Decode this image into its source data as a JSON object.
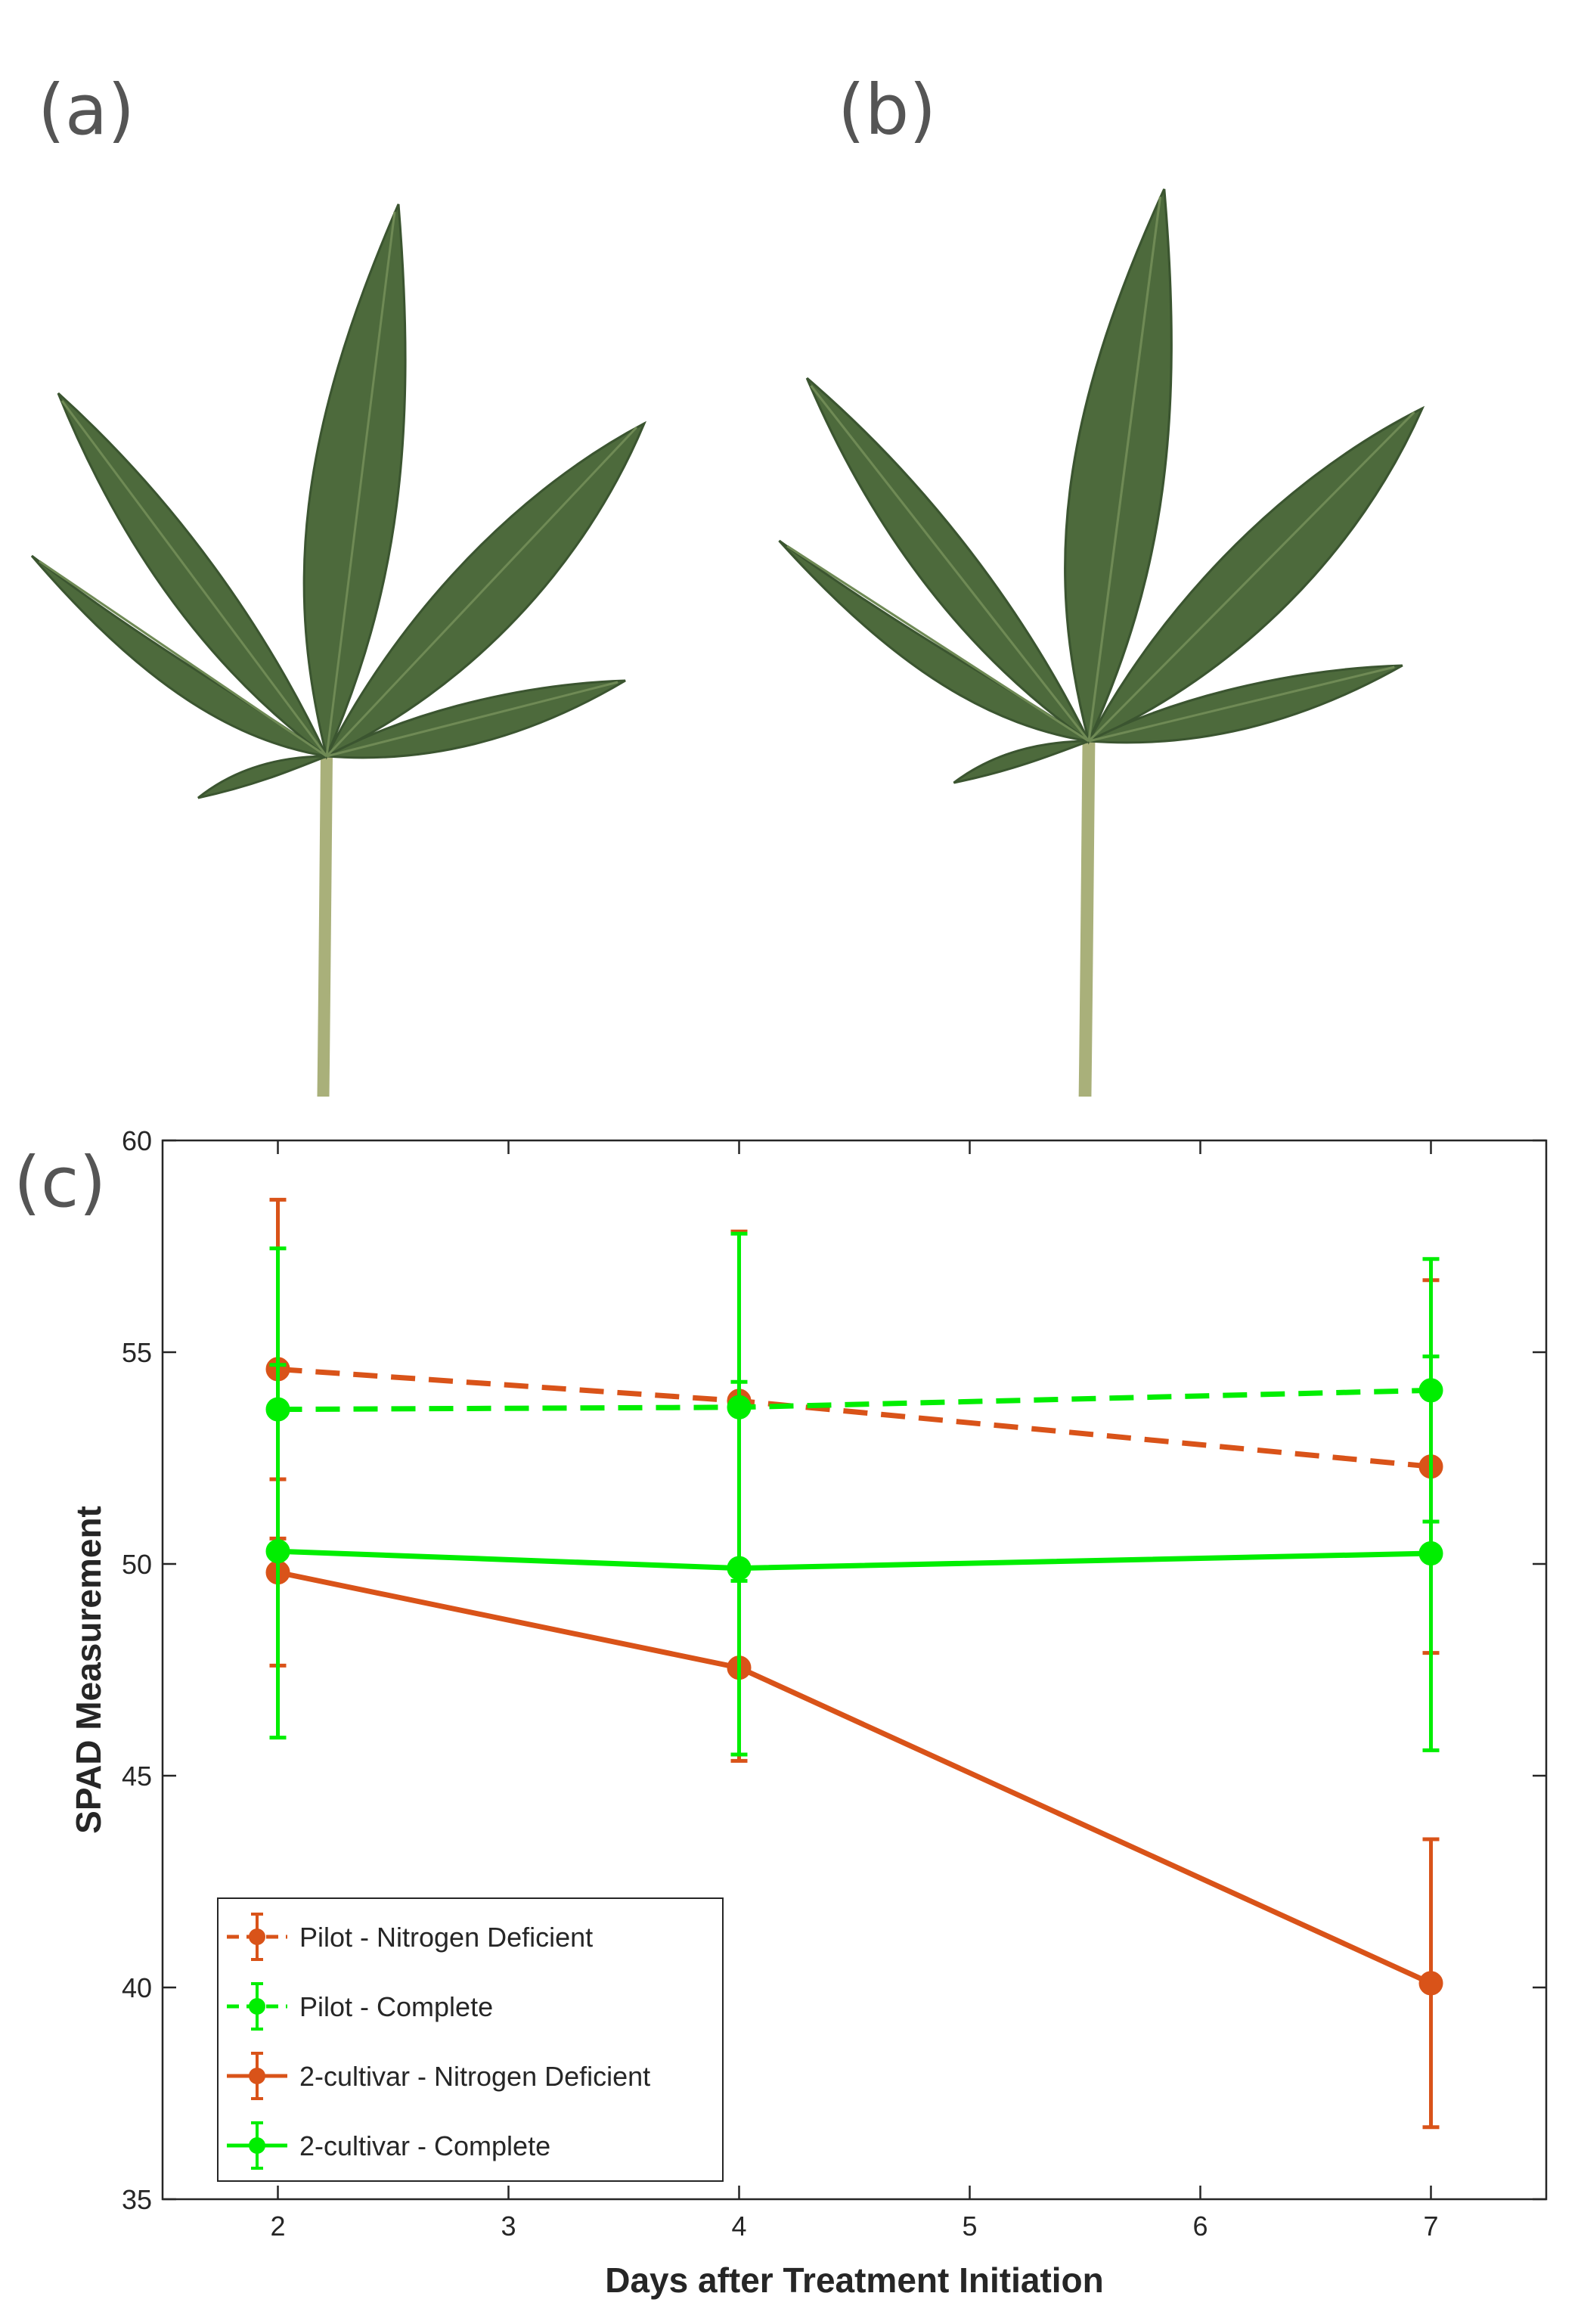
{
  "figure": {
    "panel_labels": {
      "a": "(a)",
      "b": "(b)",
      "c": "(c)"
    },
    "leaf_images": [
      {
        "panel": "a",
        "subject": "cannabis leaf"
      },
      {
        "panel": "b",
        "subject": "cannabis leaf"
      }
    ],
    "colors": {
      "orange": "#D95319",
      "green": "#00EE00",
      "leaf": "#4d6a3c",
      "leaf_dark": "#3b5530",
      "stem": "#a9b07a"
    }
  },
  "chart_data": {
    "type": "line",
    "xlabel": "Days after Treatment Initiation",
    "ylabel": "SPAD Measurement",
    "xlim": [
      1.5,
      7.5
    ],
    "ylim": [
      35,
      60
    ],
    "xticks": [
      2,
      3,
      4,
      5,
      6,
      7
    ],
    "yticks": [
      35,
      40,
      45,
      50,
      55,
      60
    ],
    "grid": false,
    "legend_position": "bottom-left",
    "error_bars": true,
    "series": [
      {
        "name": "Pilot - Nitrogen Deficient",
        "color": "#D95319",
        "style": "dashed",
        "x": [
          2,
          4,
          7
        ],
        "y": [
          54.6,
          53.85,
          52.3
        ],
        "err": [
          4.0,
          4.0,
          4.4
        ]
      },
      {
        "name": "Pilot - Complete",
        "color": "#00EE00",
        "style": "dashed",
        "x": [
          2,
          4,
          7
        ],
        "y": [
          53.65,
          53.7,
          54.1
        ],
        "err": [
          3.8,
          4.1,
          3.1
        ]
      },
      {
        "name": "2-cultivar - Nitrogen Deficient",
        "color": "#D95319",
        "style": "solid",
        "x": [
          2,
          4,
          7
        ],
        "y": [
          49.8,
          47.55,
          40.1
        ],
        "err": [
          2.2,
          2.2,
          3.4
        ]
      },
      {
        "name": "2-cultivar - Complete",
        "color": "#00EE00",
        "style": "solid",
        "x": [
          2,
          4,
          7
        ],
        "y": [
          50.3,
          49.9,
          50.25
        ],
        "err": [
          4.4,
          4.4,
          4.65
        ]
      }
    ]
  }
}
